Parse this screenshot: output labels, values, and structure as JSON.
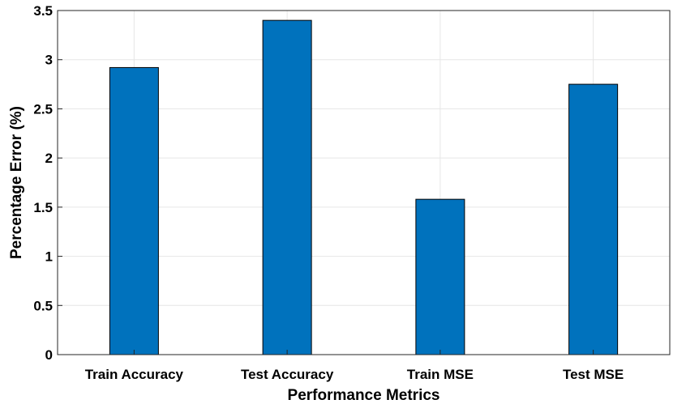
{
  "chart_data": {
    "type": "bar",
    "categories": [
      "Train Accuracy",
      "Test Accuracy",
      "Train MSE",
      "Test MSE"
    ],
    "values": [
      2.92,
      3.4,
      1.58,
      2.75
    ],
    "title": "",
    "xlabel": "Performance Metrics",
    "ylabel": "Percentage Error (%)",
    "ylim": [
      0,
      3.5
    ],
    "yticks": [
      0,
      0.5,
      1,
      1.5,
      2,
      2.5,
      3,
      3.5
    ],
    "ytick_labels": [
      "0",
      "0.5",
      "1",
      "1.5",
      "2",
      "2.5",
      "3",
      "3.5"
    ],
    "grid": true,
    "legend": "none",
    "bar_color": "#0072BD",
    "bar_edge_color": "#000000"
  }
}
